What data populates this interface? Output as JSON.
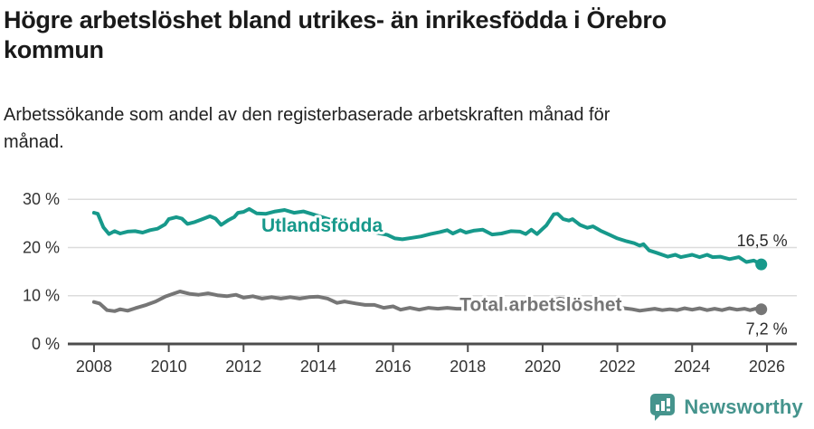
{
  "header": {
    "title_lines": [
      "Högre arbetslöshet bland utrikes- än inrikesfödda i Örebro",
      "kommun"
    ],
    "subtitle_lines": [
      "Arbetssökande som andel av den registerbaserade arbetskraften månad för",
      "månad."
    ]
  },
  "footer": {
    "brand": "Newsworthy",
    "brand_color": "#45948d",
    "logo_icon": "bar-chart-speech-bubble-icon"
  },
  "chart_data": {
    "type": "line",
    "title": "Högre arbetslöshet bland utrikes- än inrikesfödda i Örebro kommun",
    "subtitle": "Arbetssökande som andel av den registerbaserade arbetskraften månad för månad.",
    "xlabel": "",
    "ylabel": "",
    "grid": true,
    "legend_position": "inline-labels",
    "x_ticks": [
      2008,
      2010,
      2012,
      2014,
      2016,
      2018,
      2020,
      2022,
      2024,
      2026
    ],
    "y_ticks": [
      0,
      10,
      20,
      30
    ],
    "y_tick_suffix": " %",
    "x_range": [
      2007.3,
      2026.8
    ],
    "y_range": [
      0,
      33.8
    ],
    "colors": {
      "grid": "#dcdcdc",
      "axis": "#4c4c4c",
      "tick_text": "#333333",
      "value_label": "#2b2b2b"
    },
    "series": [
      {
        "id": "utlandsfodda",
        "name": "Utlandsfödda",
        "color": "#17998b",
        "label_pos": {
          "x": 2014.1,
          "y": 24.6
        },
        "end_label": "16,5 %",
        "end_label_side": "above",
        "points": [
          [
            2008.0,
            27.2
          ],
          [
            2008.1,
            27.0
          ],
          [
            2008.25,
            24.2
          ],
          [
            2008.4,
            22.8
          ],
          [
            2008.55,
            23.4
          ],
          [
            2008.7,
            22.9
          ],
          [
            2008.9,
            23.3
          ],
          [
            2009.1,
            23.4
          ],
          [
            2009.3,
            23.1
          ],
          [
            2009.5,
            23.6
          ],
          [
            2009.7,
            23.9
          ],
          [
            2009.9,
            24.8
          ],
          [
            2010.0,
            25.9
          ],
          [
            2010.2,
            26.3
          ],
          [
            2010.35,
            26.0
          ],
          [
            2010.5,
            24.9
          ],
          [
            2010.7,
            25.3
          ],
          [
            2010.9,
            25.9
          ],
          [
            2011.1,
            26.5
          ],
          [
            2011.25,
            26.0
          ],
          [
            2011.4,
            24.7
          ],
          [
            2011.6,
            25.7
          ],
          [
            2011.75,
            26.3
          ],
          [
            2011.85,
            27.2
          ],
          [
            2012.0,
            27.4
          ],
          [
            2012.15,
            28.0
          ],
          [
            2012.35,
            27.1
          ],
          [
            2012.6,
            27.0
          ],
          [
            2012.85,
            27.5
          ],
          [
            2013.1,
            27.8
          ],
          [
            2013.35,
            27.2
          ],
          [
            2013.6,
            27.5
          ],
          [
            2013.85,
            26.9
          ],
          [
            2014.1,
            26.3
          ],
          [
            2014.35,
            25.7
          ],
          [
            2014.6,
            25.1
          ],
          [
            2014.85,
            24.5
          ],
          [
            2015.1,
            23.9
          ],
          [
            2015.35,
            23.4
          ],
          [
            2015.6,
            23.0
          ],
          [
            2015.85,
            22.6
          ],
          [
            2016.05,
            21.9
          ],
          [
            2016.25,
            21.7
          ],
          [
            2016.5,
            22.0
          ],
          [
            2016.75,
            22.3
          ],
          [
            2017.0,
            22.8
          ],
          [
            2017.25,
            23.2
          ],
          [
            2017.45,
            23.6
          ],
          [
            2017.6,
            22.9
          ],
          [
            2017.8,
            23.6
          ],
          [
            2017.95,
            23.1
          ],
          [
            2018.15,
            23.5
          ],
          [
            2018.4,
            23.7
          ],
          [
            2018.65,
            22.7
          ],
          [
            2018.9,
            22.9
          ],
          [
            2019.15,
            23.4
          ],
          [
            2019.4,
            23.3
          ],
          [
            2019.55,
            22.8
          ],
          [
            2019.7,
            23.7
          ],
          [
            2019.85,
            22.8
          ],
          [
            2020.1,
            24.6
          ],
          [
            2020.3,
            26.9
          ],
          [
            2020.4,
            27.0
          ],
          [
            2020.55,
            25.9
          ],
          [
            2020.7,
            25.6
          ],
          [
            2020.8,
            25.9
          ],
          [
            2021.0,
            24.7
          ],
          [
            2021.2,
            24.1
          ],
          [
            2021.35,
            24.4
          ],
          [
            2021.55,
            23.5
          ],
          [
            2021.8,
            22.6
          ],
          [
            2022.0,
            21.9
          ],
          [
            2022.25,
            21.3
          ],
          [
            2022.45,
            20.9
          ],
          [
            2022.6,
            20.4
          ],
          [
            2022.7,
            20.7
          ],
          [
            2022.85,
            19.4
          ],
          [
            2023.05,
            18.9
          ],
          [
            2023.35,
            18.1
          ],
          [
            2023.55,
            18.5
          ],
          [
            2023.7,
            18.0
          ],
          [
            2024.0,
            18.5
          ],
          [
            2024.2,
            18.0
          ],
          [
            2024.4,
            18.5
          ],
          [
            2024.55,
            18.0
          ],
          [
            2024.75,
            18.1
          ],
          [
            2025.0,
            17.6
          ],
          [
            2025.25,
            18.0
          ],
          [
            2025.45,
            17.0
          ],
          [
            2025.65,
            17.3
          ],
          [
            2025.85,
            16.5
          ]
        ]
      },
      {
        "id": "total-arbetsloshet",
        "name": "Total arbetslöshet",
        "color": "#767676",
        "label_pos": {
          "x": 2019.95,
          "y": 8.2
        },
        "end_label": "7,2 %",
        "end_label_side": "below",
        "points": [
          [
            2008.0,
            8.7
          ],
          [
            2008.15,
            8.4
          ],
          [
            2008.35,
            7.0
          ],
          [
            2008.55,
            6.8
          ],
          [
            2008.7,
            7.2
          ],
          [
            2008.9,
            6.9
          ],
          [
            2009.1,
            7.4
          ],
          [
            2009.4,
            8.1
          ],
          [
            2009.65,
            8.8
          ],
          [
            2009.9,
            9.8
          ],
          [
            2010.15,
            10.5
          ],
          [
            2010.3,
            10.9
          ],
          [
            2010.55,
            10.4
          ],
          [
            2010.8,
            10.2
          ],
          [
            2011.05,
            10.5
          ],
          [
            2011.3,
            10.1
          ],
          [
            2011.55,
            9.9
          ],
          [
            2011.8,
            10.2
          ],
          [
            2012.0,
            9.6
          ],
          [
            2012.25,
            9.9
          ],
          [
            2012.5,
            9.4
          ],
          [
            2012.75,
            9.7
          ],
          [
            2013.0,
            9.4
          ],
          [
            2013.25,
            9.7
          ],
          [
            2013.5,
            9.4
          ],
          [
            2013.75,
            9.7
          ],
          [
            2014.0,
            9.8
          ],
          [
            2014.25,
            9.4
          ],
          [
            2014.5,
            8.5
          ],
          [
            2014.7,
            8.8
          ],
          [
            2015.0,
            8.4
          ],
          [
            2015.25,
            8.1
          ],
          [
            2015.5,
            8.1
          ],
          [
            2015.75,
            7.5
          ],
          [
            2016.0,
            7.8
          ],
          [
            2016.2,
            7.1
          ],
          [
            2016.45,
            7.5
          ],
          [
            2016.7,
            7.1
          ],
          [
            2016.95,
            7.5
          ],
          [
            2017.2,
            7.3
          ],
          [
            2017.45,
            7.5
          ],
          [
            2017.7,
            7.3
          ],
          [
            2018.0,
            7.3
          ],
          [
            2018.35,
            7.2
          ],
          [
            2018.7,
            7.4
          ],
          [
            2019.0,
            7.3
          ],
          [
            2019.35,
            7.4
          ],
          [
            2019.7,
            7.6
          ],
          [
            2020.0,
            8.0
          ],
          [
            2020.25,
            9.0
          ],
          [
            2020.45,
            9.4
          ],
          [
            2020.7,
            9.1
          ],
          [
            2021.0,
            8.6
          ],
          [
            2021.3,
            8.2
          ],
          [
            2021.6,
            7.9
          ],
          [
            2021.9,
            7.6
          ],
          [
            2022.2,
            7.4
          ],
          [
            2022.4,
            7.2
          ],
          [
            2022.6,
            6.9
          ],
          [
            2022.8,
            7.1
          ],
          [
            2023.0,
            7.3
          ],
          [
            2023.2,
            7.0
          ],
          [
            2023.4,
            7.2
          ],
          [
            2023.6,
            7.0
          ],
          [
            2023.8,
            7.4
          ],
          [
            2024.0,
            7.1
          ],
          [
            2024.2,
            7.4
          ],
          [
            2024.4,
            7.0
          ],
          [
            2024.6,
            7.3
          ],
          [
            2024.8,
            7.0
          ],
          [
            2025.0,
            7.4
          ],
          [
            2025.2,
            7.1
          ],
          [
            2025.4,
            7.3
          ],
          [
            2025.55,
            7.0
          ],
          [
            2025.7,
            7.3
          ],
          [
            2025.85,
            7.2
          ]
        ]
      }
    ]
  }
}
